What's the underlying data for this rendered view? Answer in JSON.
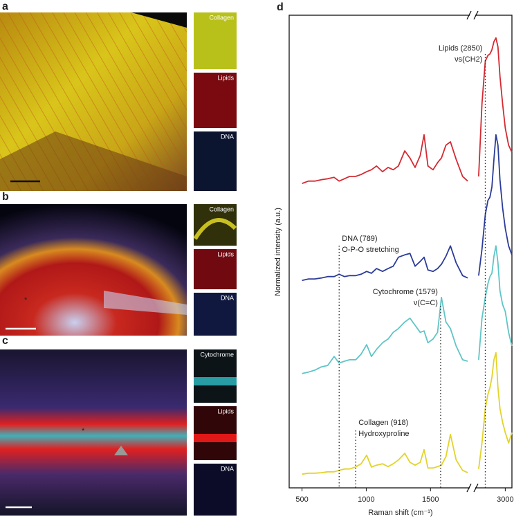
{
  "panels": [
    {
      "letter": "a",
      "insets": [
        "Collagen",
        "Lipids",
        "DNA"
      ]
    },
    {
      "letter": "b",
      "insets": [
        "Collagen",
        "Lipids",
        "DNA"
      ]
    },
    {
      "letter": "c",
      "insets": [
        "Cytochrome",
        "Lipids",
        "DNA"
      ]
    }
  ],
  "chart_data": {
    "type": "line",
    "panel_label": "d",
    "x_label": "Raman shift (cm⁻¹)",
    "y_label": "Normalized intensity (a.u.)",
    "xlim": [
      400,
      3050
    ],
    "x_break": [
      1800,
      2780
    ],
    "ylim": [
      0,
      10
    ],
    "xticks": [
      500,
      1000,
      1500,
      3000
    ],
    "x": [
      500,
      550,
      600,
      650,
      700,
      750,
      789,
      830,
      870,
      918,
      960,
      1003,
      1040,
      1080,
      1127,
      1170,
      1210,
      1250,
      1300,
      1340,
      1380,
      1420,
      1450,
      1480,
      1520,
      1555,
      1585,
      1620,
      1655,
      1700,
      1750,
      1790,
      2800,
      2825,
      2850,
      2870,
      2885,
      2900,
      2915,
      2930,
      2945,
      2960,
      2980,
      3000,
      3025,
      3050
    ],
    "series": [
      {
        "color": "#d42a32",
        "values": [
          6.44,
          6.49,
          6.49,
          6.52,
          6.54,
          6.57,
          6.49,
          6.54,
          6.59,
          6.59,
          6.63,
          6.69,
          6.73,
          6.81,
          6.69,
          6.78,
          6.73,
          6.81,
          7.13,
          6.98,
          6.78,
          7.03,
          7.47,
          6.81,
          6.73,
          6.88,
          6.98,
          7.25,
          7.32,
          6.95,
          6.59,
          6.49,
          6.59,
          8.13,
          9.03,
          9.15,
          9.18,
          9.27,
          9.44,
          9.52,
          9.33,
          8.71,
          8.13,
          7.61,
          7.25,
          7.1
        ]
      },
      {
        "color": "#2b3c98",
        "values": [
          4.39,
          4.42,
          4.42,
          4.44,
          4.47,
          4.47,
          4.52,
          4.47,
          4.49,
          4.49,
          4.52,
          4.58,
          4.54,
          4.64,
          4.58,
          4.64,
          4.69,
          4.88,
          4.93,
          4.96,
          4.69,
          4.79,
          4.88,
          4.61,
          4.58,
          4.64,
          4.73,
          4.9,
          5.12,
          4.76,
          4.49,
          4.44,
          4.49,
          5.05,
          5.78,
          6.08,
          6.15,
          6.37,
          6.95,
          7.47,
          7.25,
          6.52,
          5.93,
          5.49,
          5.12,
          4.93
        ]
      },
      {
        "color": "#5fc5c6",
        "values": [
          2.42,
          2.45,
          2.49,
          2.56,
          2.59,
          2.78,
          2.64,
          2.68,
          2.71,
          2.71,
          2.83,
          3.03,
          2.78,
          2.93,
          3.07,
          3.15,
          3.29,
          3.37,
          3.51,
          3.59,
          3.44,
          3.29,
          3.32,
          3.07,
          3.15,
          3.29,
          4.03,
          3.51,
          3.37,
          3.0,
          2.71,
          2.68,
          2.71,
          3.59,
          4.03,
          4.32,
          4.47,
          4.54,
          4.9,
          5.12,
          4.76,
          4.17,
          3.88,
          3.73,
          3.29,
          3.0
        ]
      },
      {
        "color": "#e3d32a",
        "values": [
          0.29,
          0.31,
          0.31,
          0.32,
          0.34,
          0.34,
          0.37,
          0.4,
          0.4,
          0.44,
          0.51,
          0.69,
          0.44,
          0.48,
          0.51,
          0.45,
          0.51,
          0.59,
          0.73,
          0.54,
          0.48,
          0.54,
          0.81,
          0.42,
          0.42,
          0.45,
          0.48,
          0.66,
          1.13,
          0.59,
          0.37,
          0.32,
          0.4,
          0.95,
          1.68,
          1.98,
          2.12,
          2.34,
          2.71,
          2.86,
          2.12,
          1.68,
          1.39,
          1.17,
          0.95,
          1.17
        ]
      }
    ],
    "annotations": [
      {
        "x": 2850,
        "lines": [
          "Lipids (2850)",
          "νs(CH2)"
        ]
      },
      {
        "x": 789,
        "lines": [
          "DNA (789)",
          "O-P-O stretching"
        ]
      },
      {
        "x": 1579,
        "lines": [
          "Cytochrome (1579)",
          "ν(C=C)"
        ]
      },
      {
        "x": 918,
        "lines": [
          "Collagen (918)",
          "Hydroxyproline"
        ]
      }
    ]
  }
}
